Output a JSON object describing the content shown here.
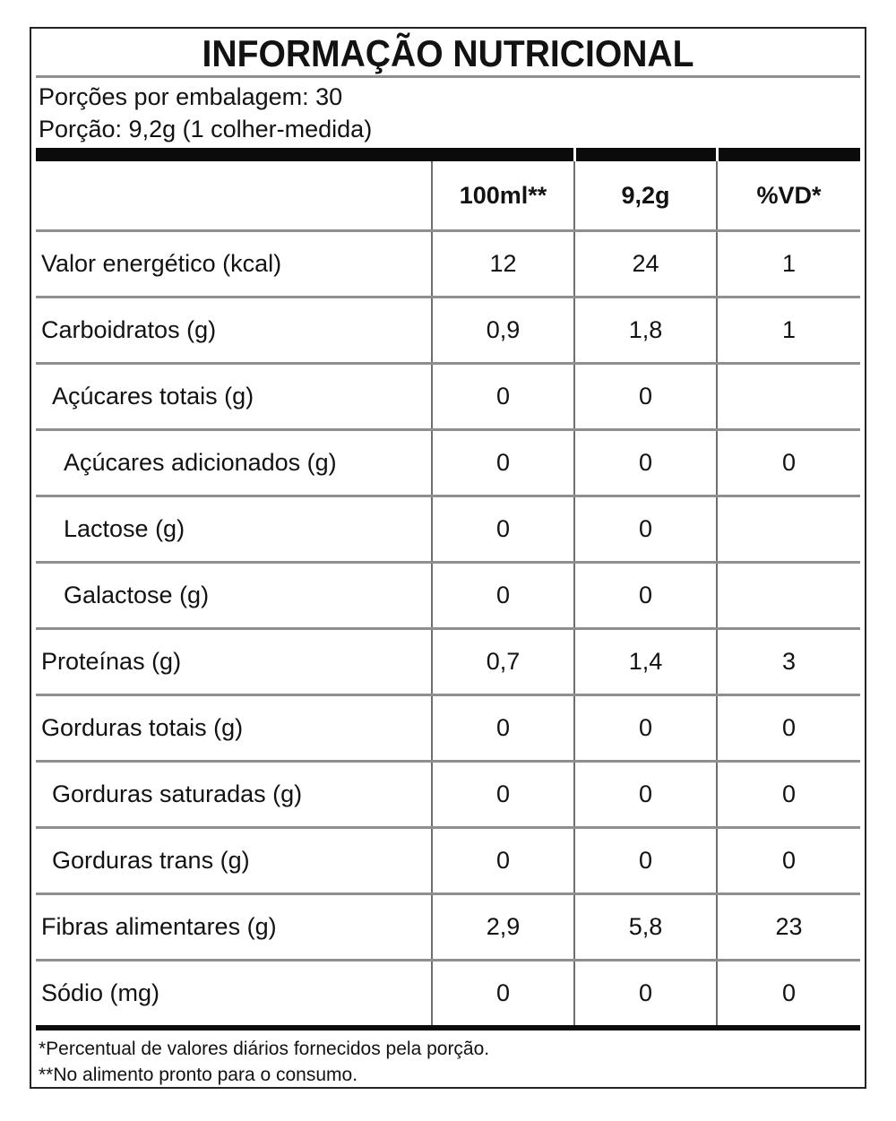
{
  "title": "INFORMAÇÃO NUTRICIONAL",
  "serving_info": {
    "servings_per_package": "Porções por embalagem: 30",
    "serving_size": "Porção: 9,2g (1 colher-medida)"
  },
  "table": {
    "header": {
      "label": "",
      "per_100ml": "100ml**",
      "per_serving": "9,2g",
      "percent_vd": "%VD*"
    },
    "rows": [
      {
        "label": "Valor energético (kcal)",
        "indent": 0,
        "per_100ml": "12",
        "per_serving": "24",
        "percent_vd": "1"
      },
      {
        "label": "Carboidratos (g)",
        "indent": 0,
        "per_100ml": "0,9",
        "per_serving": "1,8",
        "percent_vd": "1"
      },
      {
        "label": "Açúcares totais (g)",
        "indent": 1,
        "per_100ml": "0",
        "per_serving": "0",
        "percent_vd": ""
      },
      {
        "label": "Açúcares adicionados (g)",
        "indent": 2,
        "per_100ml": "0",
        "per_serving": "0",
        "percent_vd": "0"
      },
      {
        "label": "Lactose (g)",
        "indent": 2,
        "per_100ml": "0",
        "per_serving": "0",
        "percent_vd": ""
      },
      {
        "label": "Galactose (g)",
        "indent": 2,
        "per_100ml": "0",
        "per_serving": "0",
        "percent_vd": ""
      },
      {
        "label": "Proteínas (g)",
        "indent": 0,
        "per_100ml": "0,7",
        "per_serving": "1,4",
        "percent_vd": "3"
      },
      {
        "label": "Gorduras totais (g)",
        "indent": 0,
        "per_100ml": "0",
        "per_serving": "0",
        "percent_vd": "0"
      },
      {
        "label": "Gorduras saturadas (g)",
        "indent": 1,
        "per_100ml": "0",
        "per_serving": "0",
        "percent_vd": "0"
      },
      {
        "label": "Gorduras trans (g)",
        "indent": 1,
        "per_100ml": "0",
        "per_serving": "0",
        "percent_vd": "0"
      },
      {
        "label": "Fibras alimentares (g)",
        "indent": 0,
        "per_100ml": "2,9",
        "per_serving": "5,8",
        "percent_vd": "23"
      },
      {
        "label": "Sódio (mg)",
        "indent": 0,
        "per_100ml": "0",
        "per_serving": "0",
        "percent_vd": "0"
      }
    ]
  },
  "footnotes": {
    "line1": "*Percentual de valores diários fornecidos pela porção.",
    "line2": "**No alimento pronto para o consumo."
  },
  "colors": {
    "background": "#ffffff",
    "text": "#121212",
    "outer_border": "#242424",
    "thick_bar": "#0b0b0b",
    "row_separator": "#8f8f8f",
    "column_divider": "#6e6e6e"
  }
}
